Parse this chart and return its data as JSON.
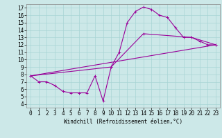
{
  "xlabel": "Windchill (Refroidissement éolien,°C)",
  "bg_color": "#cce8e8",
  "line_color": "#990099",
  "xlim": [
    -0.5,
    23.5
  ],
  "ylim": [
    3.5,
    17.5
  ],
  "xticks": [
    0,
    1,
    2,
    3,
    4,
    5,
    6,
    7,
    8,
    9,
    10,
    11,
    12,
    13,
    14,
    15,
    16,
    17,
    18,
    19,
    20,
    21,
    22,
    23
  ],
  "yticks": [
    4,
    5,
    6,
    7,
    8,
    9,
    10,
    11,
    12,
    13,
    14,
    15,
    16,
    17
  ],
  "line1_x": [
    0,
    1,
    2,
    3,
    4,
    5,
    6,
    7,
    8,
    9,
    10,
    11,
    12,
    13,
    14,
    15,
    16,
    17,
    18,
    19,
    20,
    21,
    22,
    23
  ],
  "line1_y": [
    7.8,
    7.0,
    7.0,
    6.5,
    5.7,
    5.5,
    5.5,
    5.5,
    7.8,
    4.4,
    9.0,
    11.0,
    15.0,
    16.5,
    17.1,
    16.8,
    16.0,
    15.7,
    14.3,
    13.0,
    13.0,
    12.5,
    12.0,
    12.0
  ],
  "line2_x": [
    0,
    10,
    14,
    20,
    23
  ],
  "line2_y": [
    7.8,
    9.0,
    13.5,
    13.0,
    12.0
  ],
  "line3_x": [
    0,
    23
  ],
  "line3_y": [
    7.8,
    12.0
  ],
  "tick_fontsize": 5.5,
  "xlabel_fontsize": 5.5
}
